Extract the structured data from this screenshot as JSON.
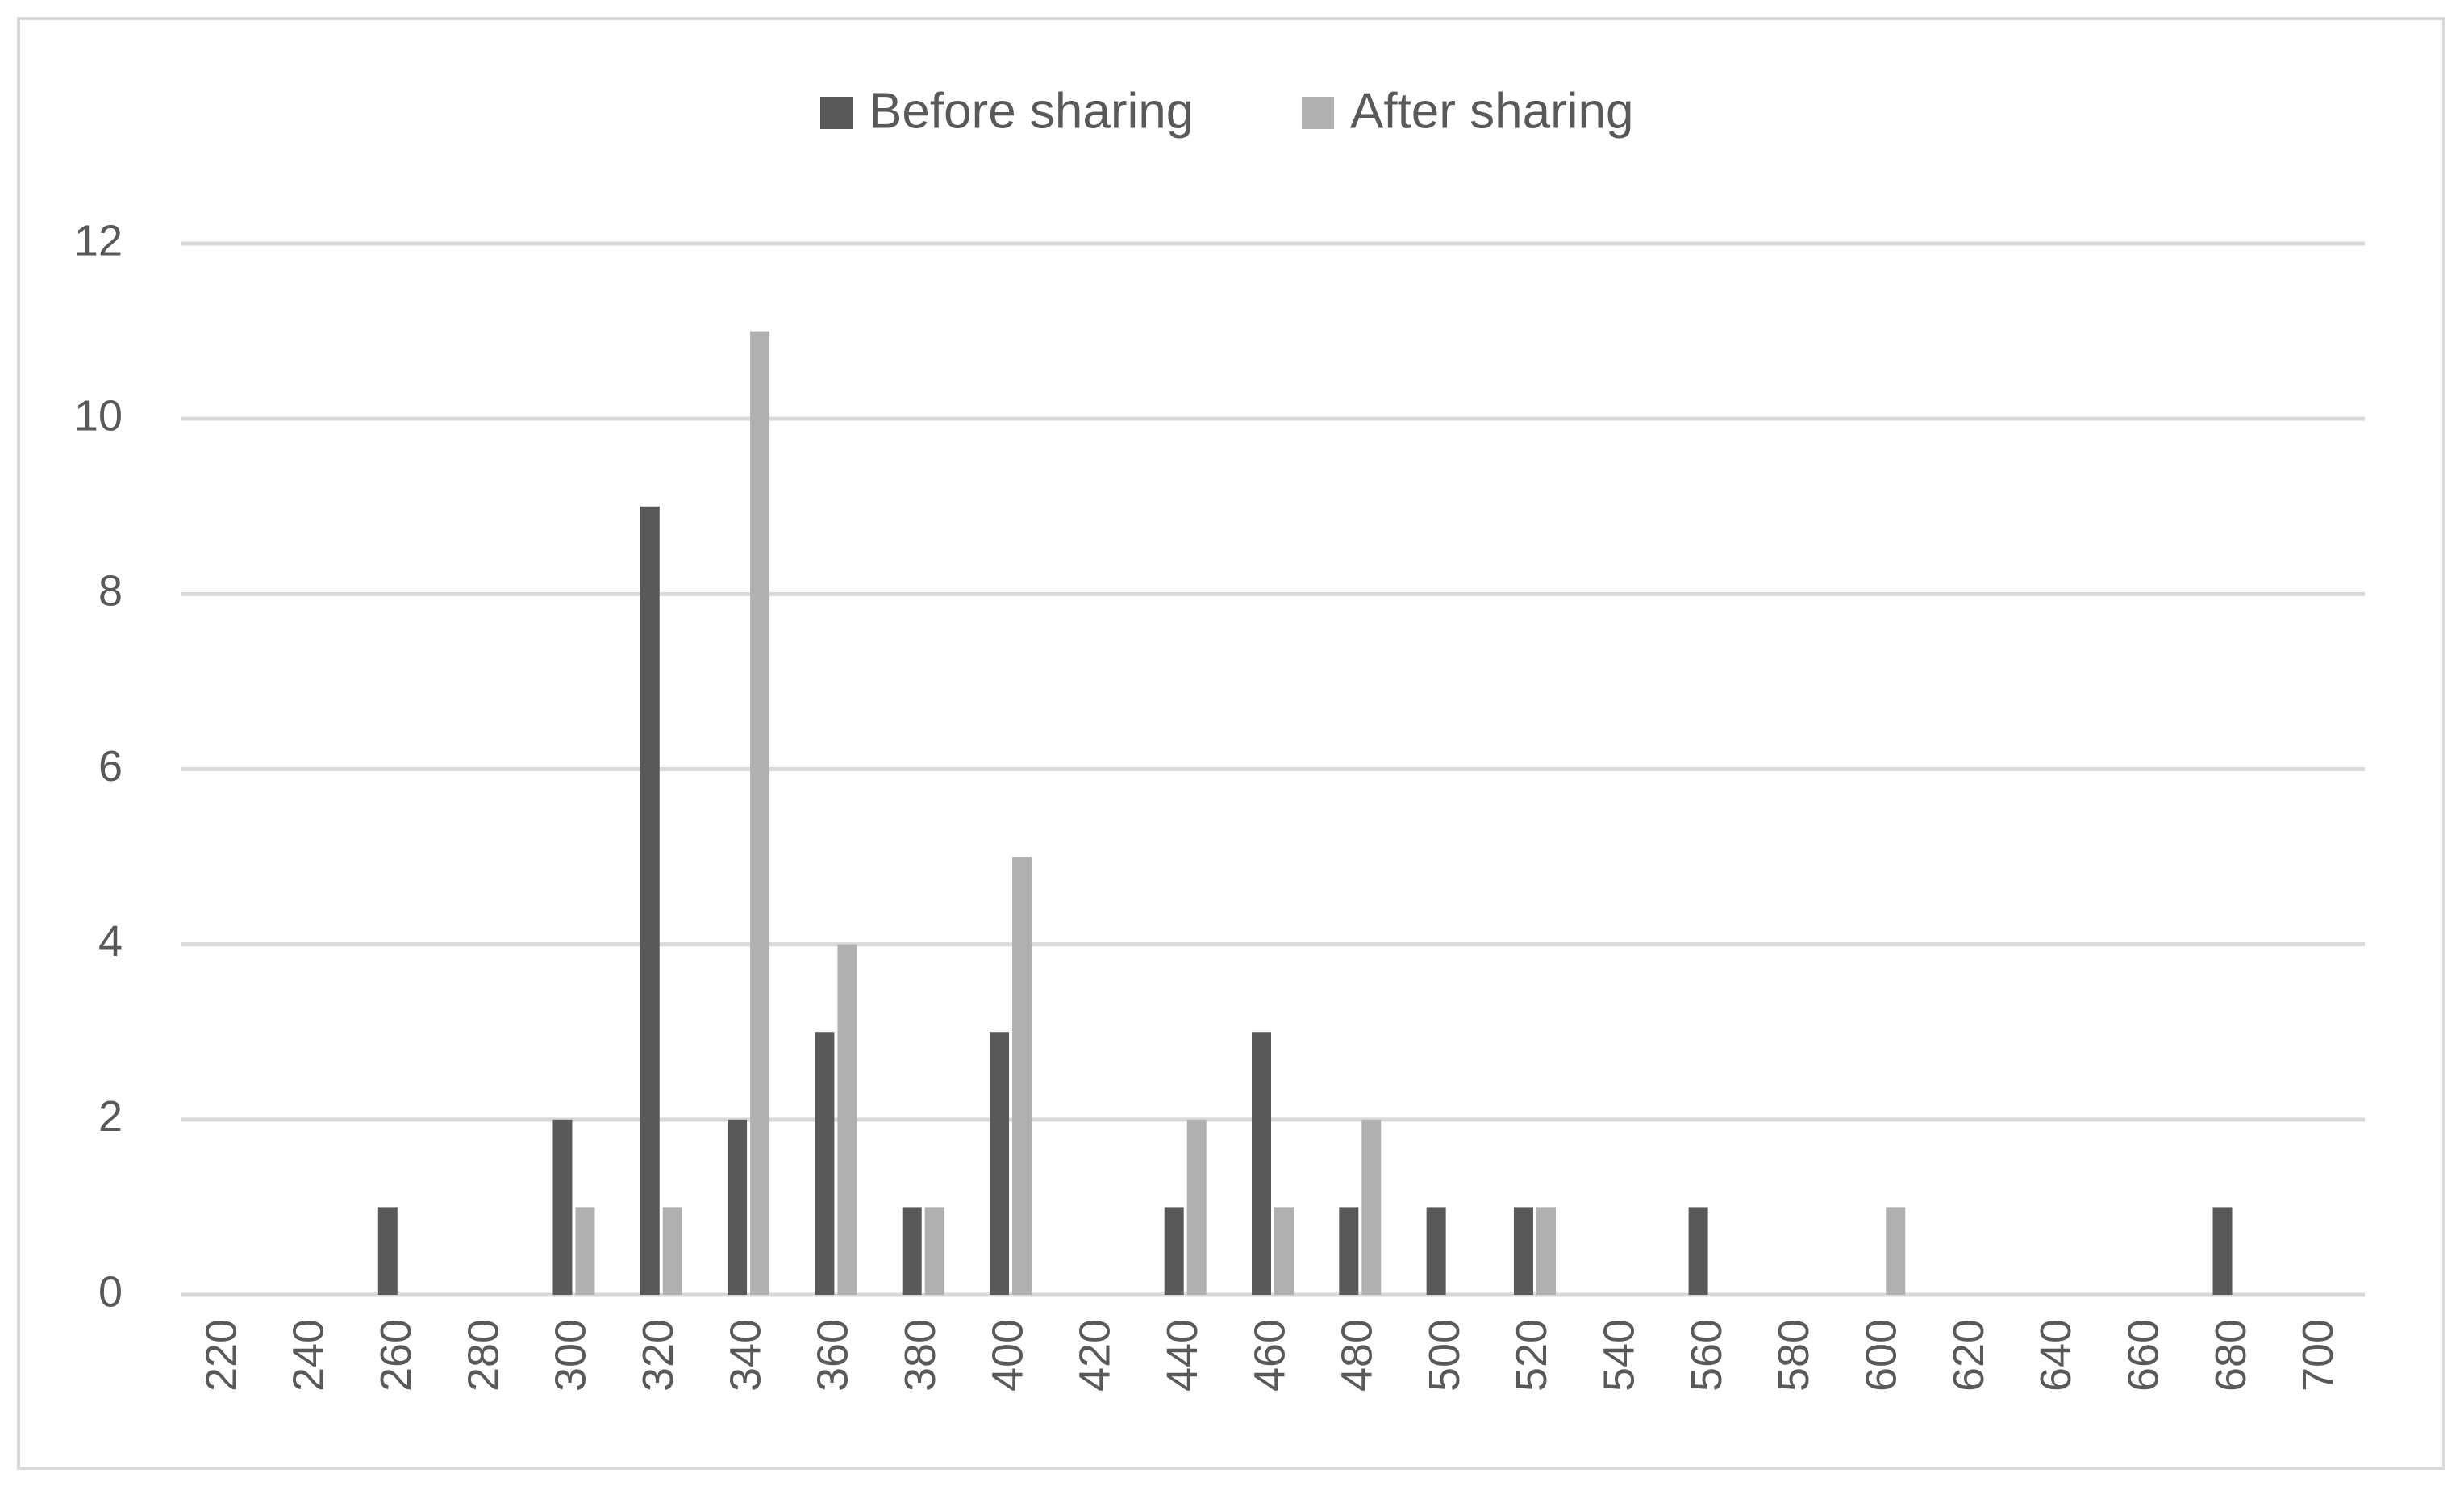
{
  "chart_data": {
    "type": "bar",
    "categories": [
      "220",
      "240",
      "260",
      "280",
      "300",
      "320",
      "340",
      "360",
      "380",
      "400",
      "420",
      "440",
      "460",
      "480",
      "500",
      "520",
      "540",
      "560",
      "580",
      "600",
      "620",
      "640",
      "660",
      "680",
      "700"
    ],
    "series": [
      {
        "name": "Before sharing",
        "color": "#595959",
        "values": [
          0,
          0,
          1,
          0,
          2,
          9,
          2,
          3,
          1,
          3,
          0,
          1,
          3,
          1,
          1,
          1,
          0,
          1,
          0,
          0,
          0,
          0,
          0,
          1,
          0
        ]
      },
      {
        "name": "After sharing",
        "color": "#b0b0b0",
        "values": [
          0,
          0,
          0,
          0,
          1,
          1,
          11,
          4,
          1,
          5,
          0,
          2,
          1,
          2,
          0,
          1,
          0,
          0,
          0,
          1,
          0,
          0,
          0,
          0,
          0
        ]
      }
    ],
    "ylim": [
      0,
      12
    ],
    "yticks": [
      0,
      2,
      4,
      6,
      8,
      10,
      12
    ],
    "grid": true,
    "legend": "top"
  }
}
